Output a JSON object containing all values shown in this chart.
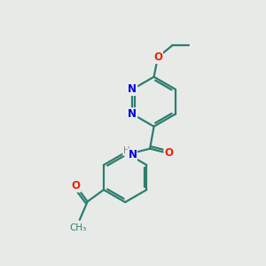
{
  "bg_color": "#e8eae8",
  "bond_color": "#2d7d6e",
  "nitrogen_color": "#0000dd",
  "oxygen_color": "#ee2200",
  "lw": 1.6,
  "figsize": [
    3.0,
    3.0
  ],
  "dpi": 100,
  "xlim": [
    0,
    10
  ],
  "ylim": [
    0,
    10
  ]
}
